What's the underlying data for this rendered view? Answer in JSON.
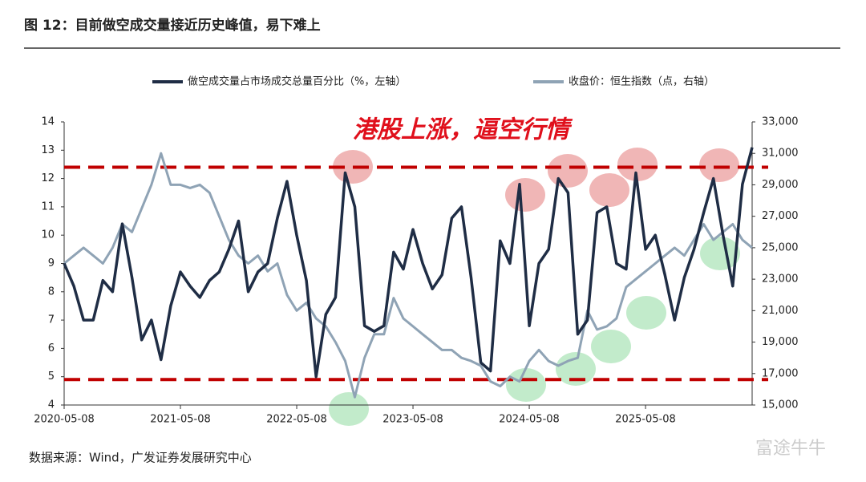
{
  "chart_data": {
    "type": "line",
    "title": "图 12：目前做空成交量接近历史峰值，易下难上",
    "annotation": "港股上涨，逼空行情",
    "source": "数据来源：Wind，广发证券发展研究中心",
    "watermark": "富途牛牛",
    "categories": [
      "2020-05-08",
      null,
      null,
      null,
      null,
      null,
      null,
      null,
      null,
      null,
      null,
      null,
      "2021-05-08",
      null,
      null,
      null,
      null,
      null,
      null,
      null,
      null,
      null,
      null,
      null,
      "2022-05-08",
      null,
      null,
      null,
      null,
      null,
      null,
      null,
      null,
      null,
      null,
      null,
      "2023-05-08",
      null,
      null,
      null,
      null,
      null,
      null,
      null,
      null,
      null,
      null,
      null,
      "2024-05-08",
      null,
      null,
      null,
      null,
      null,
      null,
      null,
      null,
      null,
      null,
      null,
      "2025-05-08",
      null,
      null,
      null,
      null,
      null,
      null,
      null,
      null,
      null,
      null,
      null
    ],
    "series": [
      {
        "name": "做空成交量占市场成交总量百分比（%，左轴）",
        "color": "#1f2d45",
        "axis": "y",
        "values": [
          9,
          8.2,
          7.0,
          7.0,
          8.4,
          8.0,
          10.4,
          8.5,
          6.3,
          7.0,
          5.6,
          7.5,
          8.7,
          8.2,
          7.8,
          8.4,
          8.7,
          9.5,
          10.5,
          8.0,
          8.7,
          9.0,
          10.6,
          11.9,
          10.0,
          8.4,
          5.0,
          7.2,
          7.8,
          12.2,
          11.0,
          6.8,
          6.6,
          6.8,
          9.4,
          8.8,
          10.2,
          9.0,
          8.1,
          8.6,
          10.6,
          11.0,
          8.5,
          5.5,
          5.2,
          9.8,
          9.0,
          11.8,
          6.8,
          9.0,
          9.5,
          12.0,
          11.5,
          6.5,
          7.0,
          10.8,
          11.0,
          9.0,
          8.8,
          12.2,
          9.5,
          10.0,
          8.6,
          7.0,
          8.5,
          9.5,
          10.8,
          12.0,
          10.0,
          8.2,
          11.8,
          13.1
        ]
      },
      {
        "name": "收盘价：恒生指数（点，右轴）",
        "color": "#8fa3b5",
        "axis": "y2",
        "values": [
          24000,
          24500,
          25000,
          24500,
          24000,
          25000,
          26500,
          26000,
          27500,
          29000,
          31000,
          29000,
          29000,
          28800,
          29000,
          28500,
          27000,
          25500,
          24500,
          24000,
          24500,
          23500,
          24000,
          22000,
          21000,
          21500,
          20500,
          20000,
          19000,
          17800,
          15500,
          18000,
          19500,
          19500,
          21800,
          20500,
          20000,
          19500,
          19000,
          18500,
          18500,
          18000,
          17800,
          17500,
          16500,
          16200,
          16800,
          16500,
          17800,
          18500,
          17800,
          17500,
          17800,
          18000,
          21000,
          19800,
          20000,
          20500,
          22500,
          23000,
          23500,
          24000,
          24500,
          25000,
          24500,
          25500,
          26500,
          25500,
          26000,
          26500,
          25500,
          25000
        ]
      }
    ],
    "reference_lines": [
      12.4,
      4.9
    ],
    "ylim": [
      4,
      14
    ],
    "yticks": [
      4,
      5,
      6,
      7,
      8,
      9,
      10,
      11,
      12,
      13,
      14
    ],
    "y2lim": [
      15000,
      33000
    ],
    "y2ticks": [
      {
        "value": 15000,
        "label": "15,000"
      },
      {
        "value": 17000,
        "label": "17,000"
      },
      {
        "value": 19000,
        "label": "19,000"
      },
      {
        "value": 21000,
        "label": "21,000"
      },
      {
        "value": 23000,
        "label": "23,000"
      },
      {
        "value": 25000,
        "label": "25,000"
      },
      {
        "value": 27000,
        "label": "27,000"
      },
      {
        "value": 29000,
        "label": "29,000"
      },
      {
        "value": 31000,
        "label": "31,000"
      },
      {
        "value": 33000,
        "label": "33,000"
      }
    ],
    "legend": "top"
  }
}
